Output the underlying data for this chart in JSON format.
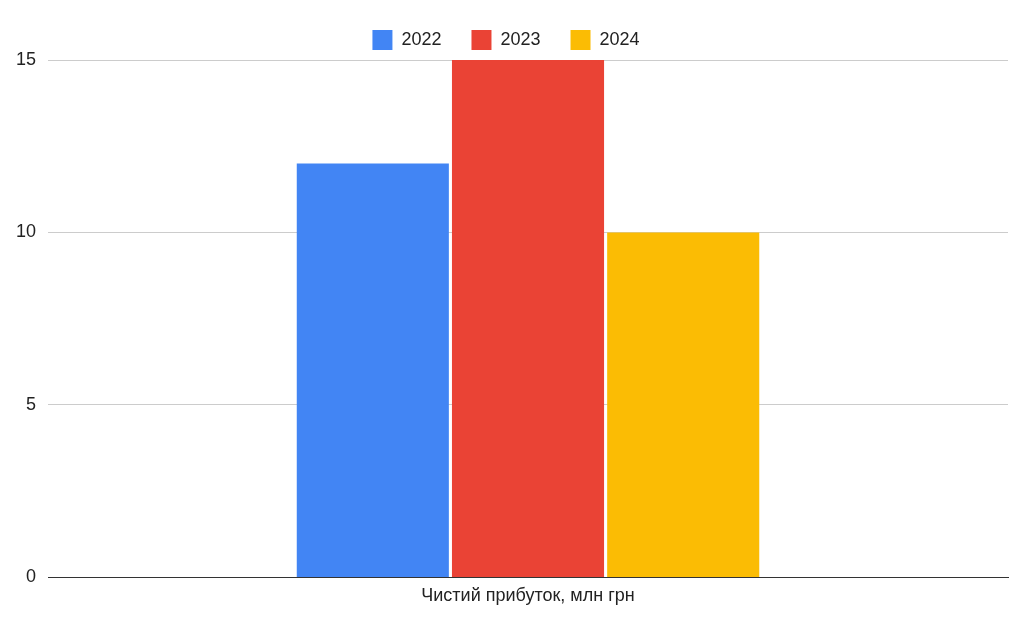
{
  "chart_data": {
    "type": "bar",
    "categories": [
      "Чистий прибуток, млн грн"
    ],
    "series": [
      {
        "name": "2022",
        "color": "#4285f4",
        "values": [
          12
        ]
      },
      {
        "name": "2023",
        "color": "#ea4335",
        "values": [
          15
        ]
      },
      {
        "name": "2024",
        "color": "#fbbc04",
        "values": [
          10
        ]
      }
    ],
    "ylim": [
      0,
      15
    ],
    "yticks": [
      0,
      5,
      10,
      15
    ],
    "grid": "y",
    "legend": "top"
  }
}
